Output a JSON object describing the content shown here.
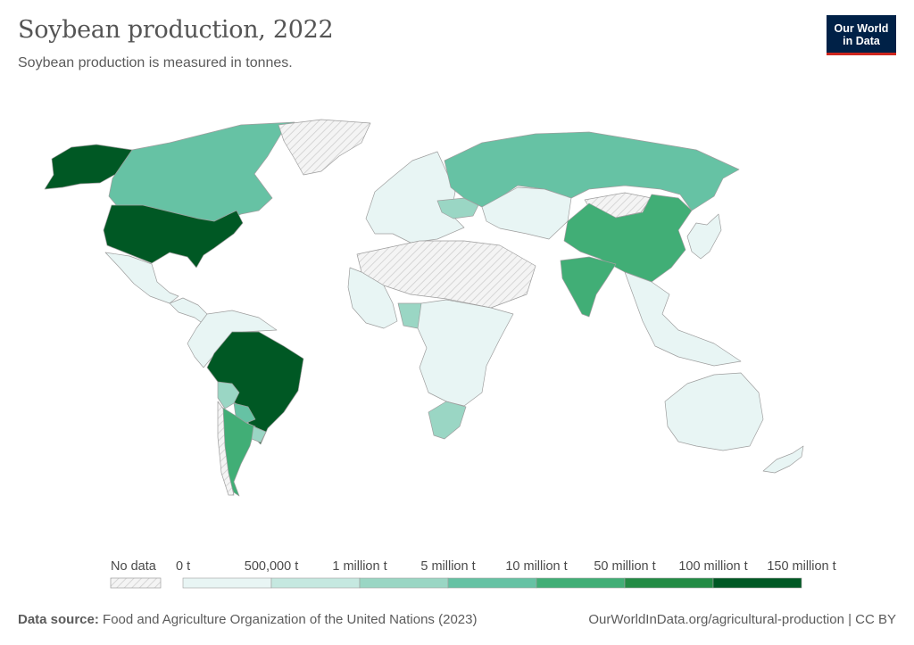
{
  "header": {
    "title": "Soybean production, 2022",
    "subtitle": "Soybean production is measured in tonnes.",
    "logo_line1": "Our World",
    "logo_line2": "in Data"
  },
  "legend": {
    "no_data_label": "No data",
    "bins": [
      {
        "label": "0 t",
        "color": "#e8f5f4"
      },
      {
        "label": "500,000 t",
        "color": "#c5e8e0"
      },
      {
        "label": "1 million t",
        "color": "#9ad6c4"
      },
      {
        "label": "5 million t",
        "color": "#66c2a4"
      },
      {
        "label": "10 million t",
        "color": "#41ae76"
      },
      {
        "label": "50 million t",
        "color": "#238b45"
      },
      {
        "label": "100 million t",
        "color": "#005824"
      },
      {
        "label": "150 million t",
        "color": null
      }
    ]
  },
  "map": {
    "colors": {
      "no_data_fill": "#f2f2f2",
      "hatch": "#cccccc",
      "border": "#9e9e9e"
    },
    "regions": [
      {
        "name": "Alaska (United States)",
        "level": "100 million t+"
      },
      {
        "name": "Canada",
        "level": "5–10 million t"
      },
      {
        "name": "Greenland",
        "level": "No data"
      },
      {
        "name": "United States",
        "level": "100 million t+"
      },
      {
        "name": "Mexico",
        "level": "0–500,000 t"
      },
      {
        "name": "Central America",
        "level": "0–500,000 t"
      },
      {
        "name": "Northern South America",
        "level": "0–500,000 t"
      },
      {
        "name": "Brazil",
        "level": "100 million t+"
      },
      {
        "name": "Bolivia",
        "level": "1–5 million t"
      },
      {
        "name": "Paraguay",
        "level": "5–10 million t"
      },
      {
        "name": "Argentina",
        "level": "10–50 million t"
      },
      {
        "name": "Uruguay",
        "level": "1–5 million t"
      },
      {
        "name": "Chile",
        "level": "No data"
      },
      {
        "name": "Europe",
        "level": "0–500,000 t"
      },
      {
        "name": "Ukraine",
        "level": "1–5 million t"
      },
      {
        "name": "Russia",
        "level": "5–10 million t"
      },
      {
        "name": "Kazakhstan & Central Asia",
        "level": "0–500,000 t"
      },
      {
        "name": "Mongolia",
        "level": "No data"
      },
      {
        "name": "China",
        "level": "10–50 million t"
      },
      {
        "name": "India",
        "level": "10–50 million t"
      },
      {
        "name": "Southeast Asia",
        "level": "0–500,000 t"
      },
      {
        "name": "Japan & Korea",
        "level": "0–500,000 t"
      },
      {
        "name": "Sahara & Arabia",
        "level": "No data"
      },
      {
        "name": "North & West Africa",
        "level": "0–500,000 t"
      },
      {
        "name": "Nigeria",
        "level": "1–5 million t"
      },
      {
        "name": "Central & East Africa",
        "level": "0–500,000 t"
      },
      {
        "name": "South Africa",
        "level": "1–5 million t"
      },
      {
        "name": "Australia",
        "level": "0–500,000 t"
      },
      {
        "name": "New Zealand",
        "level": "0–500,000 t"
      }
    ]
  },
  "footer": {
    "source_label": "Data source:",
    "source_text": "Food and Agriculture Organization of the United Nations (2023)",
    "url_text": "OurWorldInData.org/agricultural-production | CC BY"
  }
}
